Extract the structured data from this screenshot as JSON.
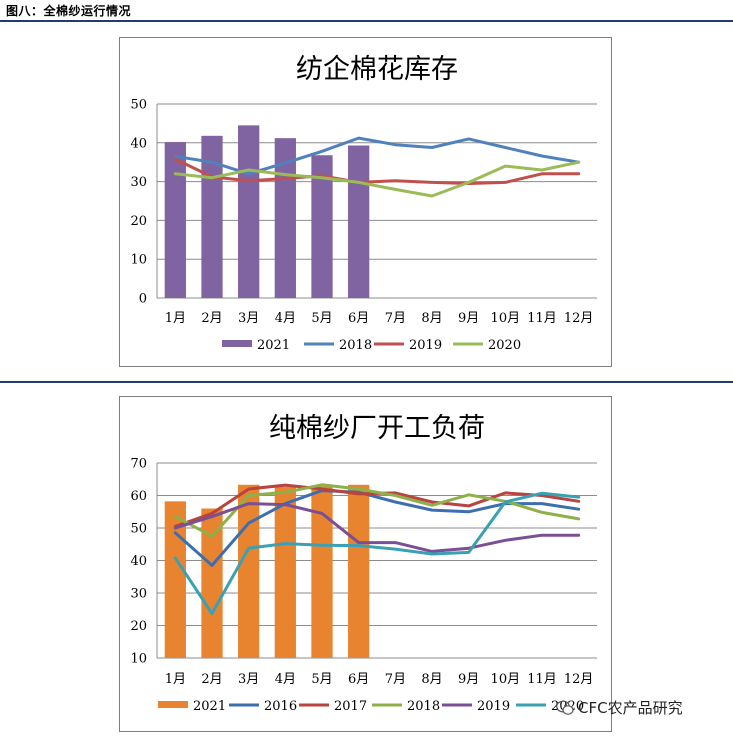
{
  "figure_caption": "图八：全棉纱运行情况",
  "watermark": {
    "text": "CFC农产品研究",
    "icon": "wechat-icon"
  },
  "colors": {
    "c2021a": "#8064a2",
    "c2021b": "#e8842f",
    "c2018a": "#4f81bd",
    "c2019a": "#c0504d",
    "c2020a": "#9bbb59",
    "c2016b": "#3d6fb0",
    "c2017b": "#b8433f",
    "c2018b": "#8db04a",
    "c2019b": "#7a4f96",
    "c2020b": "#3aa0b4",
    "grid": "#8c8c8c",
    "rule": "#1f3d6e"
  },
  "chart_data": [
    {
      "type": "bar",
      "title": "纺企棉花库存",
      "categories": [
        "1月",
        "2月",
        "3月",
        "4月",
        "5月",
        "6月",
        "7月",
        "8月",
        "9月",
        "10月",
        "11月",
        "12月"
      ],
      "ylim": [
        0,
        50
      ],
      "yticks": [
        0,
        10,
        20,
        30,
        40,
        50
      ],
      "grid": true,
      "legend": "bottom",
      "bar_series": {
        "name": "2021",
        "color_key": "c2021a",
        "values": [
          40.2,
          41.8,
          44.5,
          41.2,
          36.8,
          39.3
        ]
      },
      "line_series": [
        {
          "name": "2018",
          "color_key": "c2018a",
          "values": [
            36.5,
            35.0,
            32.0,
            34.8,
            37.8,
            41.2,
            39.5,
            38.8,
            41.0,
            38.8,
            36.6,
            35.0
          ]
        },
        {
          "name": "2019",
          "color_key": "c2019a",
          "values": [
            35.8,
            31.2,
            30.2,
            30.8,
            31.5,
            29.8,
            30.2,
            29.8,
            29.5,
            29.8,
            32.0,
            32.0
          ]
        },
        {
          "name": "2020",
          "color_key": "c2020a",
          "values": [
            32.0,
            31.0,
            33.0,
            31.8,
            31.0,
            29.8,
            28.0,
            26.3,
            29.8,
            34.0,
            33.0,
            35.0
          ]
        }
      ]
    },
    {
      "type": "bar",
      "title": "纯棉纱厂开工负荷",
      "categories": [
        "1月",
        "2月",
        "3月",
        "4月",
        "5月",
        "6月",
        "7月",
        "8月",
        "9月",
        "10月",
        "11月",
        "12月"
      ],
      "ylim": [
        10,
        70
      ],
      "yticks": [
        10,
        20,
        30,
        40,
        50,
        60,
        70
      ],
      "grid": true,
      "legend": "bottom",
      "bar_series": {
        "name": "2021",
        "color_key": "c2021b",
        "values": [
          58.2,
          56.0,
          63.3,
          62.7,
          62.8,
          63.3
        ]
      },
      "line_series": [
        {
          "name": "2016",
          "color_key": "c2016b",
          "values": [
            48.5,
            38.5,
            51.5,
            57.5,
            61.5,
            61.0,
            58.0,
            55.5,
            55.0,
            57.5,
            57.5,
            55.8
          ]
        },
        {
          "name": "2017",
          "color_key": "c2017b",
          "values": [
            50.5,
            54.5,
            62.0,
            63.2,
            62.0,
            60.5,
            60.8,
            58.0,
            56.8,
            60.8,
            60.0,
            58.2
          ]
        },
        {
          "name": "2018",
          "color_key": "c2018b",
          "values": [
            53.5,
            47.5,
            60.0,
            61.0,
            63.3,
            62.0,
            60.0,
            57.0,
            60.2,
            58.2,
            54.8,
            52.8
          ]
        },
        {
          "name": "2019",
          "color_key": "c2019b",
          "values": [
            50.0,
            53.5,
            57.5,
            57.2,
            54.5,
            45.5,
            45.5,
            42.8,
            43.8,
            46.2,
            47.8,
            47.8
          ]
        },
        {
          "name": "2020",
          "color_key": "c2020b",
          "values": [
            40.8,
            23.7,
            43.8,
            45.2,
            44.7,
            44.6,
            43.5,
            42.0,
            42.5,
            58.0,
            60.7,
            59.5
          ]
        }
      ]
    }
  ]
}
